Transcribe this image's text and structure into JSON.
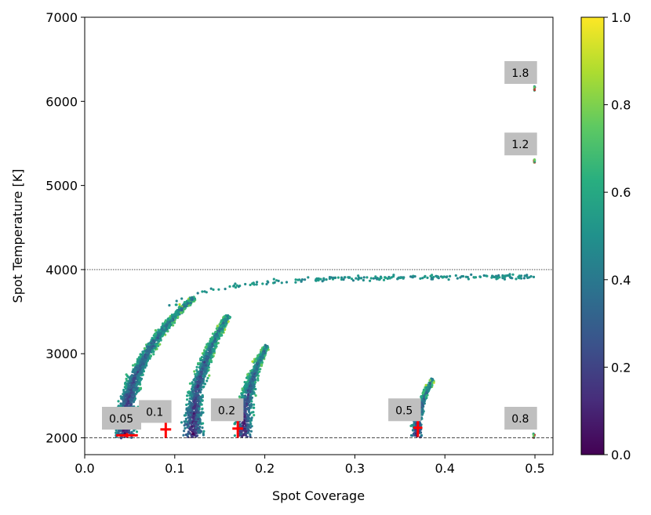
{
  "chart_data": {
    "type": "scatter",
    "title": "",
    "xlabel": "Spot Coverage",
    "ylabel": "Spot Temperature [K]",
    "xlim": [
      0.0,
      0.52
    ],
    "ylim": [
      1800,
      7000
    ],
    "xticks": [
      0.0,
      0.1,
      0.2,
      0.3,
      0.4,
      0.5
    ],
    "xtick_labels": [
      "0.0",
      "0.1",
      "0.2",
      "0.3",
      "0.4",
      "0.5"
    ],
    "yticks": [
      2000,
      3000,
      4000,
      5000,
      6000,
      7000
    ],
    "ytick_labels": [
      "2000",
      "3000",
      "4000",
      "5000",
      "6000",
      "7000"
    ],
    "grid": false,
    "colormap": "viridis",
    "colorbar": {
      "range": [
        0.0,
        1.0
      ],
      "ticks": [
        0.0,
        0.2,
        0.4,
        0.6,
        0.8,
        1.0
      ],
      "tick_labels": [
        "0.0",
        "0.2",
        "0.4",
        "0.6",
        "0.8",
        "1.0"
      ]
    },
    "reference_lines": [
      {
        "y": 4000,
        "style": "dotted"
      },
      {
        "y": 2000,
        "style": "dashed"
      }
    ],
    "point_clouds": [
      {
        "name": "0.05",
        "x": [
          0.03,
          0.062
        ],
        "y": [
          2000,
          3800
        ],
        "best_fit": {
          "x": 0.047,
          "y": 2030,
          "x_err": 0.012,
          "y_err": 25
        }
      },
      {
        "name": "0.1",
        "x": [
          0.075,
          0.175
        ],
        "y": [
          2000,
          3550
        ],
        "best_fit": {
          "x": 0.09,
          "y": 2100,
          "x_err": 0.006,
          "y_err": 100
        }
      },
      {
        "name": "0.2",
        "x": [
          0.155,
          0.203
        ],
        "y": [
          2000,
          3080
        ],
        "best_fit": {
          "x": 0.17,
          "y": 2110,
          "x_err": 0.006,
          "y_err": 110
        }
      },
      {
        "name": "0.5",
        "x": [
          0.355,
          0.386
        ],
        "y": [
          2000,
          2680
        ],
        "best_fit": {
          "x": 0.37,
          "y": 2120,
          "x_err": 0.005,
          "y_err": 110
        }
      },
      {
        "name": "0.8",
        "x": [
          0.498,
          0.5
        ],
        "y": [
          2000,
          2050
        ]
      },
      {
        "name": "1.2",
        "x": [
          0.499,
          0.5
        ],
        "y": [
          5270,
          5310
        ]
      },
      {
        "name": "1.8",
        "x": [
          0.499,
          0.5
        ],
        "y": [
          6120,
          6180
        ]
      }
    ],
    "annotations": [
      {
        "text": "0.05",
        "x": 0.027,
        "y": 2210
      },
      {
        "text": "0.1",
        "x": 0.068,
        "y": 2290
      },
      {
        "text": "0.2",
        "x": 0.148,
        "y": 2310
      },
      {
        "text": "0.5",
        "x": 0.345,
        "y": 2310
      },
      {
        "text": "0.8",
        "x": 0.474,
        "y": 2210
      },
      {
        "text": "1.2",
        "x": 0.474,
        "y": 5470
      },
      {
        "text": "1.8",
        "x": 0.474,
        "y": 6320
      }
    ]
  }
}
